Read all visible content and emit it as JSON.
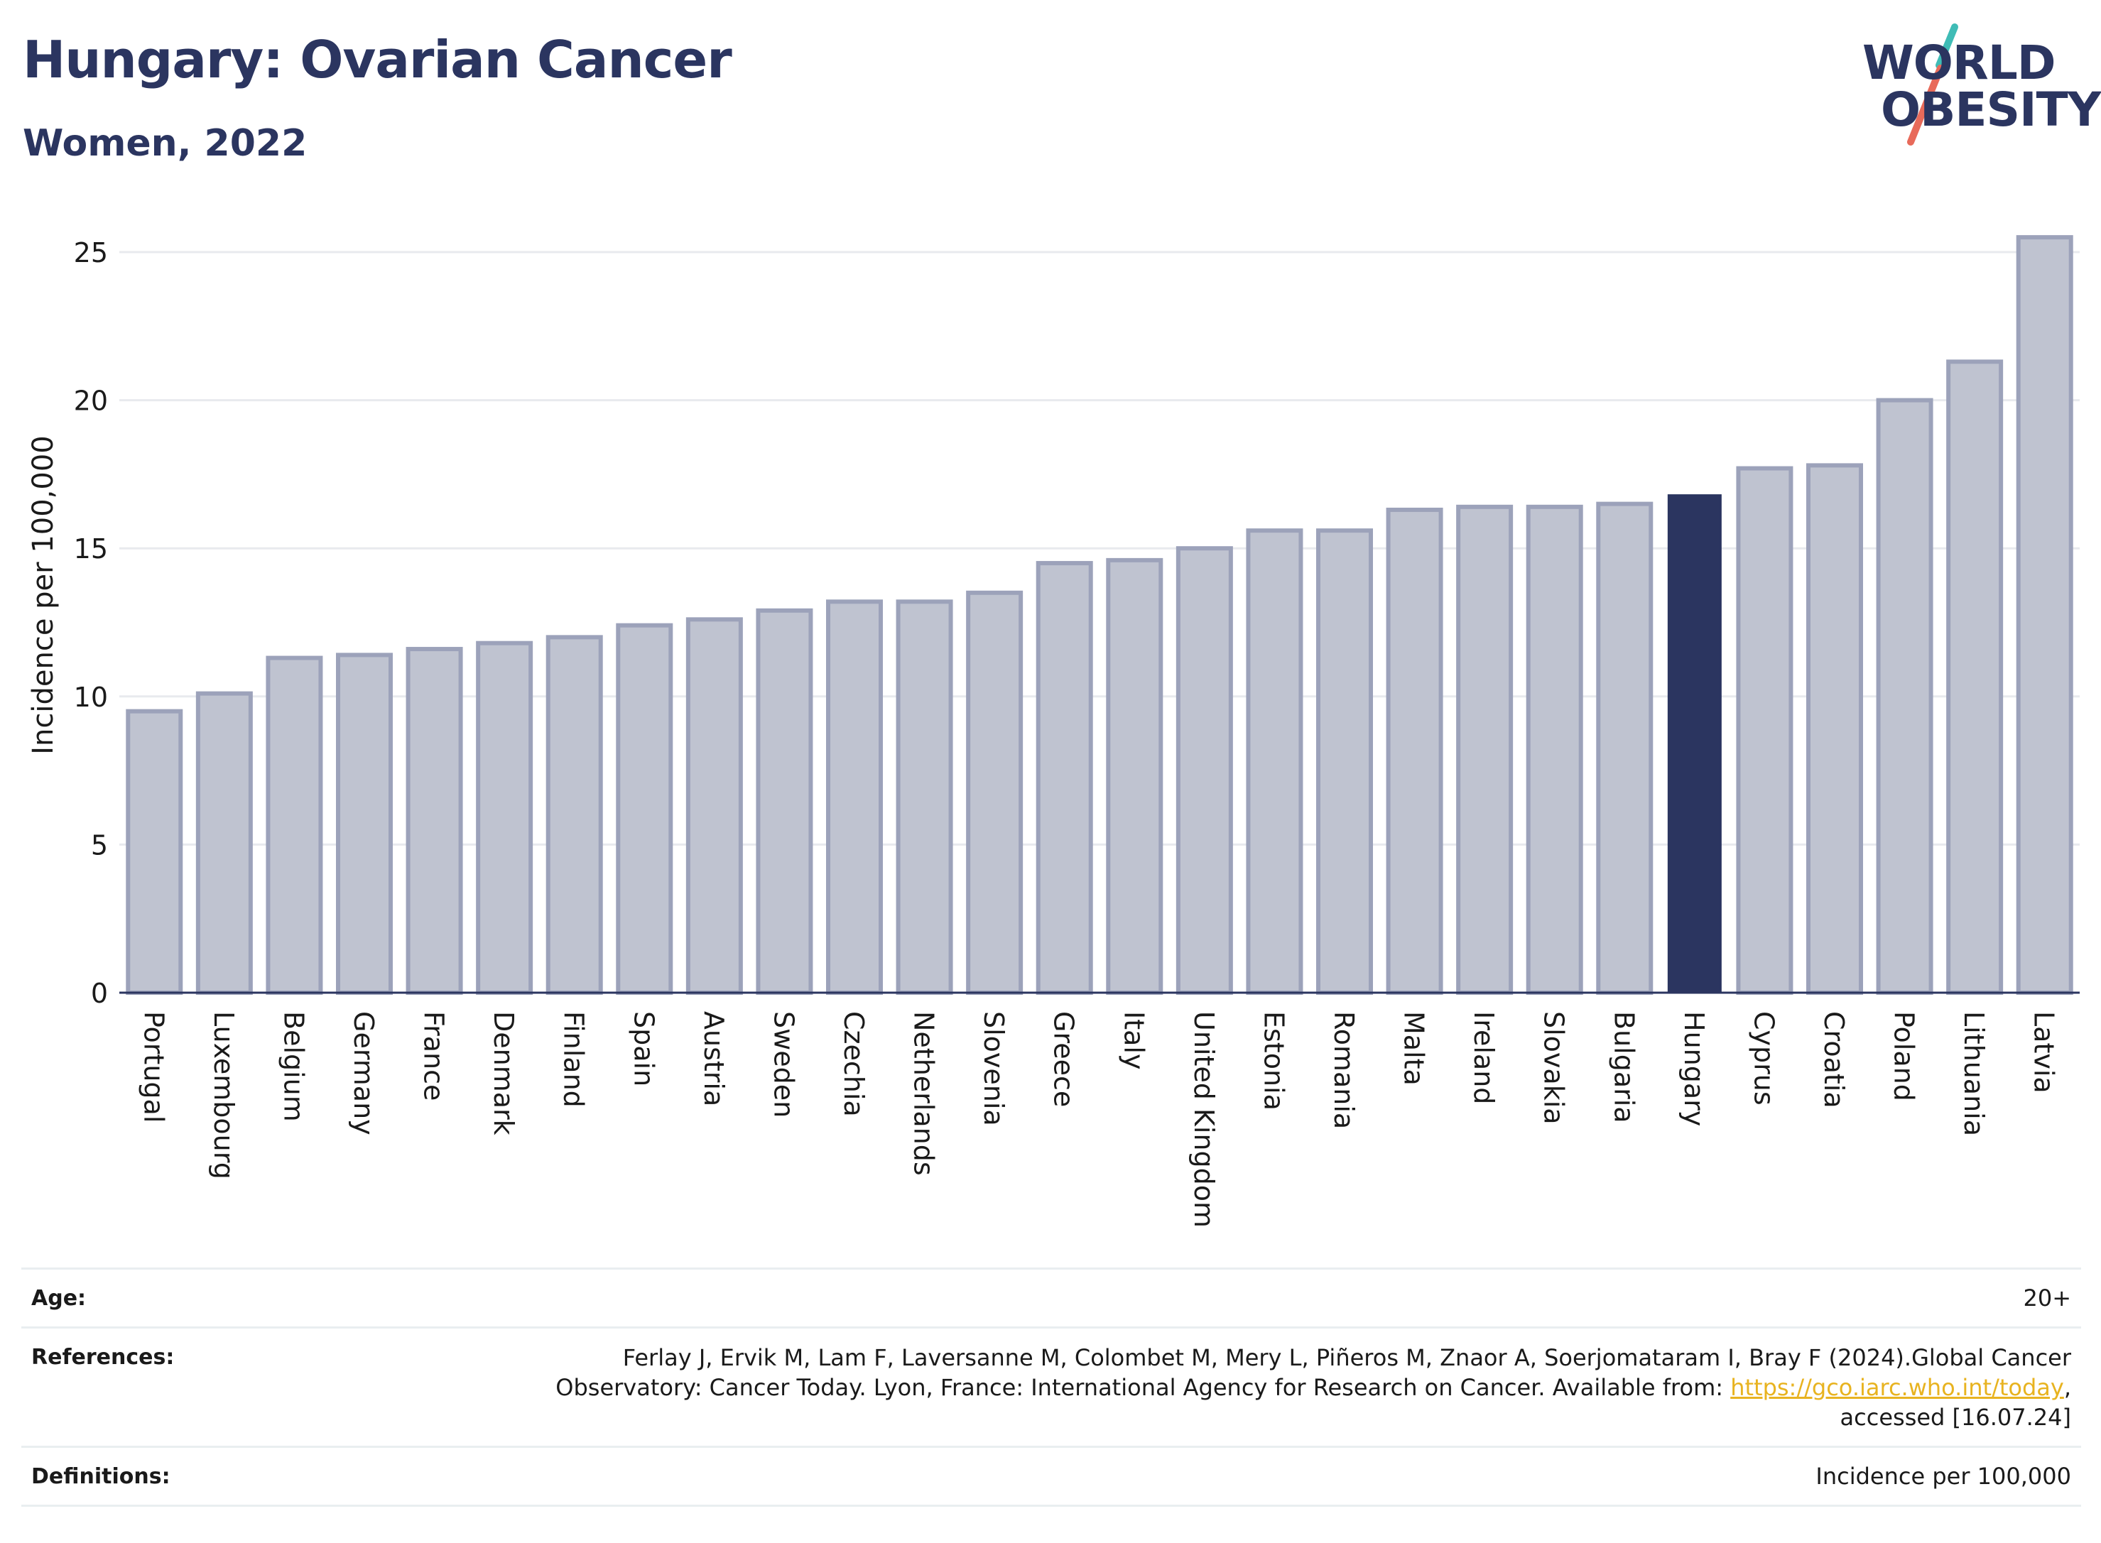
{
  "header": {
    "title": "Hungary: Ovarian Cancer",
    "subtitle": "Women, 2022"
  },
  "logo": {
    "line1": "WORLD",
    "line2": "OBESITY",
    "text_color": "#2b3560",
    "slash_colors": [
      "#3fbcb6",
      "#e86a5a"
    ]
  },
  "colors": {
    "bar_default": "#bfc3d0",
    "bar_default_border": "#9ca2ba",
    "bar_highlight": "#2b3560",
    "grid": "#e8eaee",
    "axis_line": "#2b3560",
    "link": "#e8b320"
  },
  "chart_data": {
    "type": "bar",
    "ylabel": "Incidence per 100,000",
    "xlabel": "",
    "ylim": [
      0,
      26
    ],
    "yticks": [
      0,
      5,
      10,
      15,
      20,
      25
    ],
    "grid": true,
    "highlight": "Hungary",
    "categories": [
      "Portugal",
      "Luxembourg",
      "Belgium",
      "Germany",
      "France",
      "Denmark",
      "Finland",
      "Spain",
      "Austria",
      "Sweden",
      "Czechia",
      "Netherlands",
      "Slovenia",
      "Greece",
      "Italy",
      "United Kingdom",
      "Estonia",
      "Romania",
      "Malta",
      "Ireland",
      "Slovakia",
      "Bulgaria",
      "Hungary",
      "Cyprus",
      "Croatia",
      "Poland",
      "Lithuania",
      "Latvia"
    ],
    "values": [
      9.5,
      10.1,
      11.3,
      11.4,
      11.6,
      11.8,
      12.0,
      12.4,
      12.6,
      12.9,
      13.2,
      13.2,
      13.5,
      14.5,
      14.6,
      15.0,
      15.6,
      15.6,
      16.3,
      16.4,
      16.4,
      16.5,
      16.8,
      17.7,
      17.8,
      20.0,
      21.3,
      25.5
    ]
  },
  "info": {
    "age_label": "Age:",
    "age_value": "20+",
    "references_label": "References:",
    "references_text": "Ferlay J, Ervik M, Lam F, Laversanne M, Colombet M, Mery L, Piñeros M, Znaor A, Soerjomataram I, Bray F (2024).Global Cancer Observatory: Cancer Today. Lyon, France: International Agency for Research on Cancer. Available from:",
    "references_link": "https://gco.iarc.who.int/today",
    "references_tail": ", accessed [16.07.24]",
    "definitions_label": "Definitions:",
    "definitions_value": "Incidence per 100,000"
  }
}
